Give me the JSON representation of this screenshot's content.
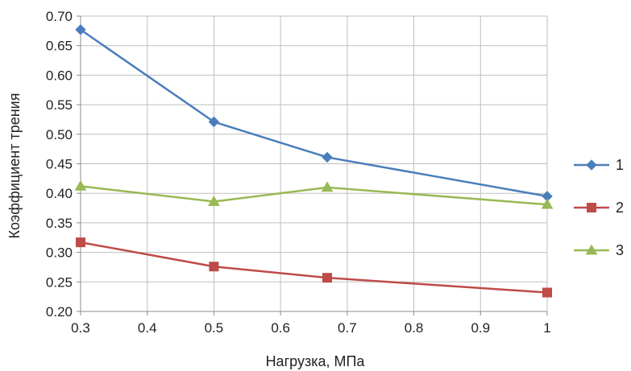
{
  "chart_data": {
    "type": "line",
    "xlabel": "Нагрузка, МПа",
    "ylabel": "Коэффициент трения",
    "xlim": [
      0.3,
      1.0
    ],
    "ylim": [
      0.2,
      0.7
    ],
    "x_ticks": [
      "0.3",
      "0.4",
      "0.5",
      "0.6",
      "0.7",
      "0.8",
      "0.9",
      "1"
    ],
    "y_ticks": [
      "0.20",
      "0.25",
      "0.30",
      "0.35",
      "0.40",
      "0.45",
      "0.50",
      "0.55",
      "0.60",
      "0.65",
      "0.70"
    ],
    "grid": true,
    "legend_position": "right",
    "series": [
      {
        "name": "1",
        "color": "#4a7ebb",
        "marker": "diamond",
        "x": [
          0.3,
          0.5,
          0.67,
          1.0
        ],
        "y": [
          0.677,
          0.521,
          0.461,
          0.395
        ]
      },
      {
        "name": "2",
        "color": "#be4b48",
        "marker": "square",
        "x": [
          0.3,
          0.5,
          0.67,
          1.0
        ],
        "y": [
          0.317,
          0.276,
          0.257,
          0.232
        ]
      },
      {
        "name": "3",
        "color": "#98b954",
        "marker": "triangle",
        "x": [
          0.3,
          0.5,
          0.67,
          1.0
        ],
        "y": [
          0.412,
          0.386,
          0.41,
          0.381
        ]
      }
    ]
  }
}
